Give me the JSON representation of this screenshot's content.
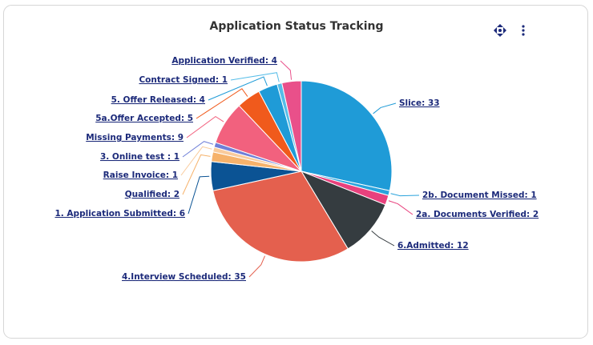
{
  "chart_data": {
    "type": "pie",
    "title": "Application Status Tracking",
    "values": [
      33,
      1,
      2,
      12,
      35,
      6,
      2,
      1,
      1,
      9,
      5,
      4,
      1,
      4
    ],
    "value_labels": [
      "Slice: 33",
      "2b. Document Missed: 1",
      "2a. Documents Verified: 2",
      "6.Admitted: 12",
      "4.Interview Scheduled: 35",
      "1. Application Submitted: 6",
      "Qualified: 2",
      "Raise Invoice: 1",
      "3. Online test : 1",
      "Missing Payments: 9",
      "5a.Offer Accepted: 5",
      "5. Offer Released: 4",
      "Contract Signed: 1",
      "Application Verified: 4"
    ],
    "colors": [
      "#1f9bd7",
      "#2aa3dc",
      "#e8417d",
      "#353c40",
      "#e4604e",
      "#0b5394",
      "#f6b26b",
      "#f9cb9c",
      "#6f7fd8",
      "#f2617e",
      "#f05a1c",
      "#1f9bd7",
      "#56bde8",
      "#e9508a"
    ]
  }
}
